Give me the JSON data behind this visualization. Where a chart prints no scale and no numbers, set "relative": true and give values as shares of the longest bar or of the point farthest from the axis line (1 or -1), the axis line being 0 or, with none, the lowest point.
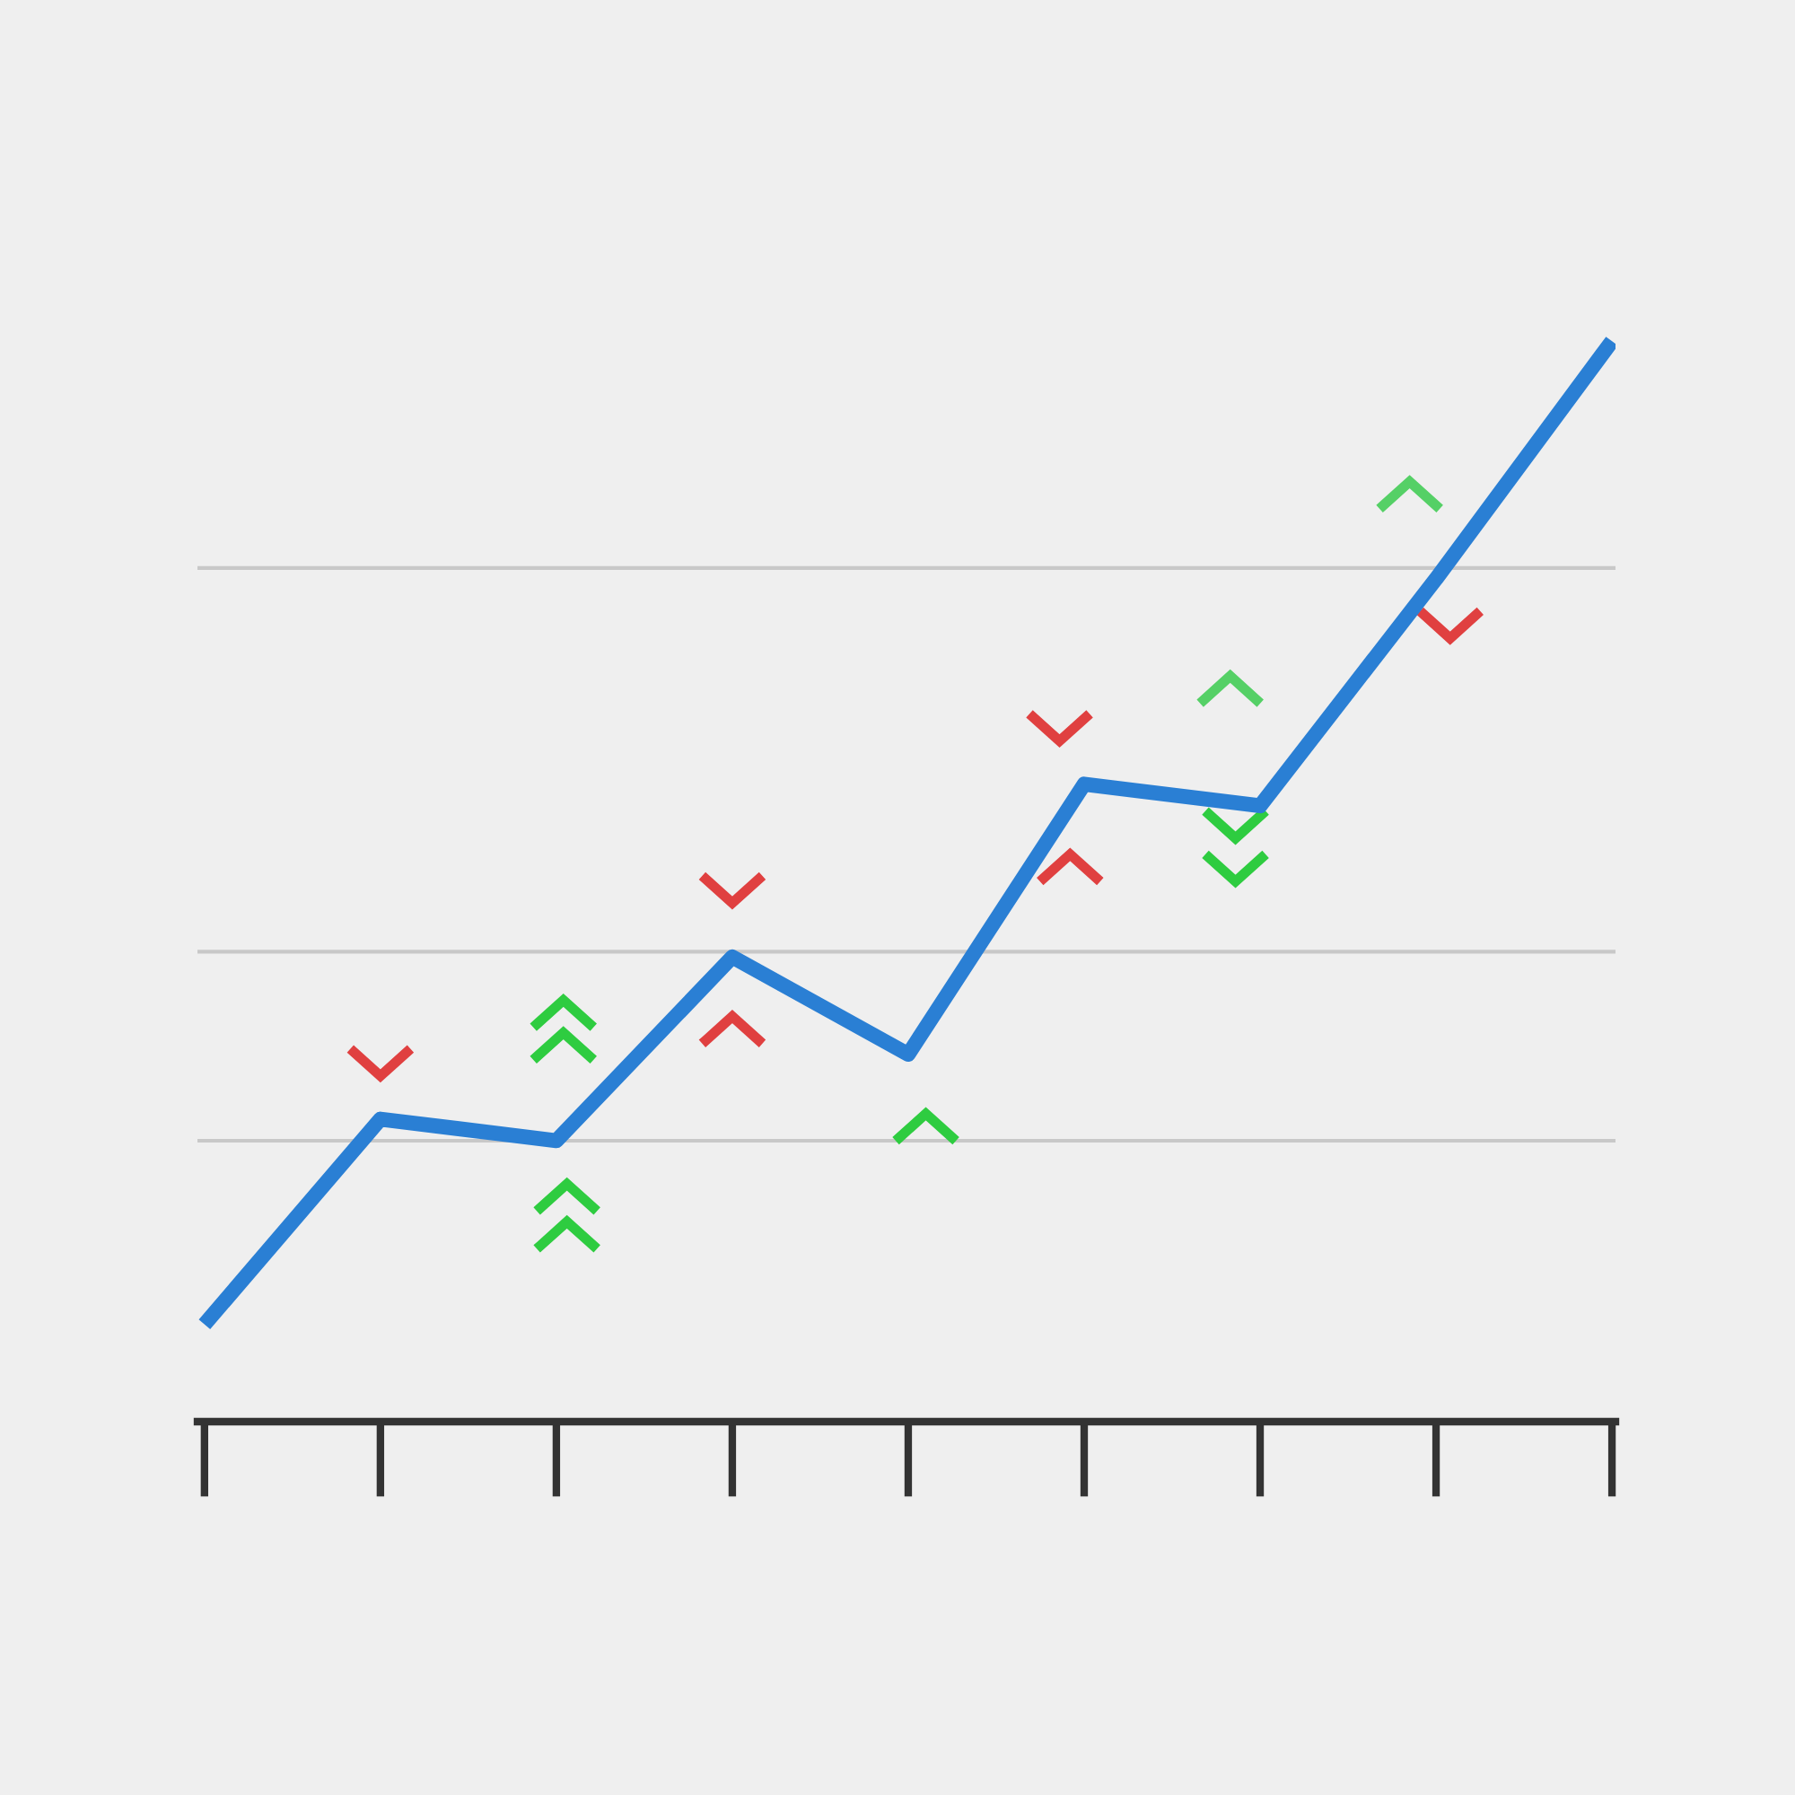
{
  "chart_data": {
    "type": "line",
    "relative": true,
    "categories": [
      null,
      null,
      null,
      null,
      null,
      null,
      null,
      null,
      null
    ],
    "series": [
      {
        "color": "#2a7fd4",
        "values": [
          0.09,
          0.28,
          0.26,
          0.43,
          0.34,
          0.59,
          0.57,
          0.78,
          1
        ]
      }
    ],
    "ref_lines": [
      {
        "axis": "y",
        "value": 0.79,
        "color": "#c8c8c8"
      },
      {
        "axis": "y",
        "value": 0.435,
        "color": "#c8c8c8"
      },
      {
        "axis": "y",
        "value": 0.26,
        "color": "#c8c8c8"
      }
    ],
    "grid": false,
    "legend": false,
    "marker": "none",
    "line_style": "solid"
  }
}
